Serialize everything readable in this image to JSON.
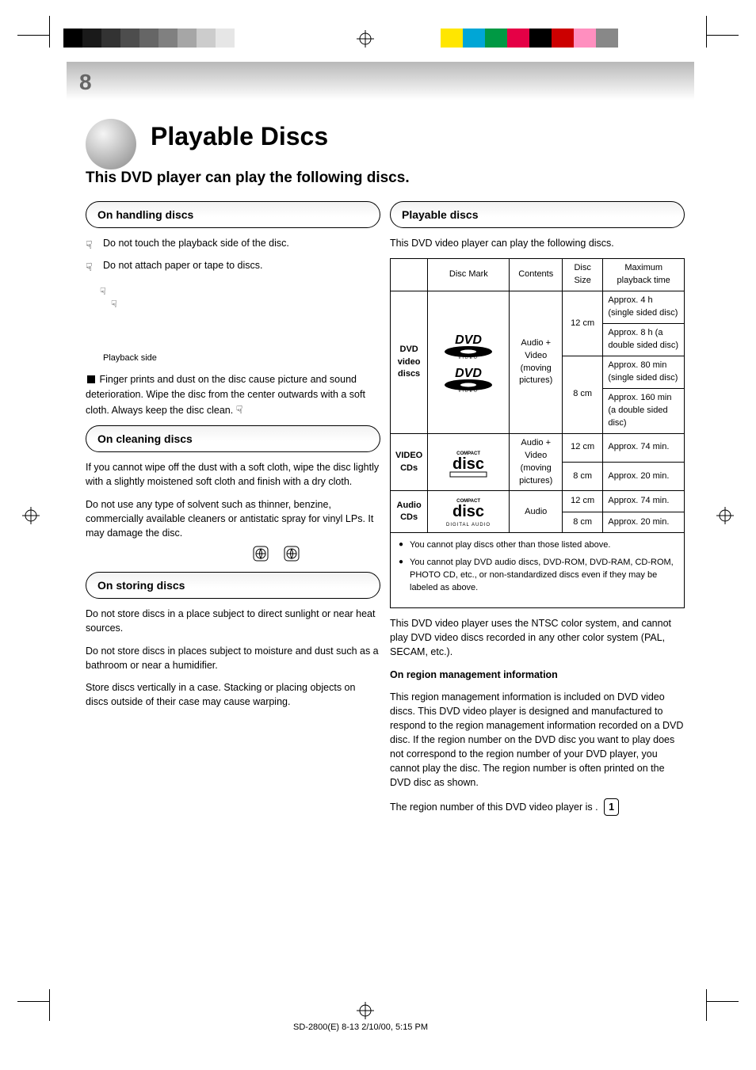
{
  "page_number": "8",
  "title": "Playable Discs",
  "subtitle": "This DVD player can play the following discs.",
  "wedge_colors": [
    "#000000",
    "#1a1a1a",
    "#333333",
    "#4d4d4d",
    "#666666",
    "#808080",
    "#a6a6a6",
    "#cccccc",
    "#e6e6e6",
    "#ffffff"
  ],
  "swatch_colors": [
    "#ffe600",
    "#00a6d6",
    "#009944",
    "#e50046",
    "#000000",
    "#cc0000",
    "#ff8fbf",
    "#888888"
  ],
  "left": {
    "section1_heading": "On handling discs",
    "s1_p1": "Do not touch the playback side of the disc.",
    "s1_p2": "Do not attach paper or tape to discs.",
    "s1_note1": "Playback side",
    "s1_note2": "Finger prints and dust on the disc cause picture and sound deterioration. Wipe the disc from the center outwards with a soft cloth. Always keep the disc clean.",
    "on_cleaning_heading": "On cleaning discs",
    "clean_p1": "If you cannot wipe off the dust with a soft cloth, wipe the disc lightly with a slightly moistened soft cloth and finish with a dry cloth.",
    "clean_p2": "Do not use any type of solvent such as thinner, benzine, commercially available cleaners or antistatic spray for vinyl LPs. It may damage the disc.",
    "on_storing_heading": "On storing discs",
    "store_p1": "Do not store discs in a place subject to direct sunlight or near heat sources.",
    "store_p2": "Do not store discs in places subject to moisture and dust such as a bathroom or near a humidifier.",
    "store_p3": "Store discs vertically in a case. Stacking or placing objects on discs outside of their case may cause warping.",
    "stop_label": "",
    "hand_glyph": "☟"
  },
  "right": {
    "section_heading": "Playable discs",
    "intro": "This DVD video player can play the following discs.",
    "table": {
      "columns": [
        "",
        "Disc Mark",
        "Contents",
        "Disc Size",
        "Maximum playback time"
      ],
      "rows": [
        {
          "group": "DVD video discs",
          "rowspan": 4,
          "contents": "Audio + Video (moving pictures)",
          "cells": [
            {
              "size": "12 cm",
              "time": "Approx. 4 h (single sided disc)"
            },
            {
              "size": "",
              "time": "Approx. 8 h (a double sided disc)"
            },
            {
              "size": "8 cm",
              "time": "Approx. 80 min (single sided disc)"
            },
            {
              "size": "",
              "time": "Approx. 160 min (a double sided disc)"
            }
          ]
        },
        {
          "group": "VIDEO CDs",
          "rowspan": 2,
          "contents": "Audio + Video (moving pictures)",
          "cells": [
            {
              "size": "12 cm",
              "time": "Approx. 74 min."
            },
            {
              "size": "8 cm",
              "time": "Approx. 20 min."
            }
          ]
        },
        {
          "group": "Audio CDs",
          "rowspan": 2,
          "contents": "Audio",
          "cells": [
            {
              "size": "12 cm",
              "time": "Approx. 74 min."
            },
            {
              "size": "8 cm",
              "time": "Approx. 20 min."
            }
          ]
        }
      ],
      "notes": [
        "You cannot play discs other than those listed above.",
        "You cannot play DVD audio discs, DVD-ROM, DVD-RAM, CD-ROM, PHOTO CD, etc., or non-standardized discs even if they may be labeled as above."
      ]
    },
    "below_p1": "This DVD video player uses the NTSC color system, and cannot play DVD video discs recorded in any other color system (PAL, SECAM, etc.).",
    "region_heading": "On region management information",
    "region_body": "This region management information is included on DVD video discs. This DVD video player is designed and manufactured to respond to the region management information recorded on a DVD disc. If the region number on the DVD disc you want to play does not correspond to the region number of your DVD player, you cannot play the disc. The region number is often printed on the DVD disc as shown.",
    "region_label": "The region number of this DVD video player is   .",
    "region_numbers": [
      "1",
      "1"
    ]
  },
  "footer_filename": "SD-2800(E)  8-13  2/10/00, 5:15 PM"
}
